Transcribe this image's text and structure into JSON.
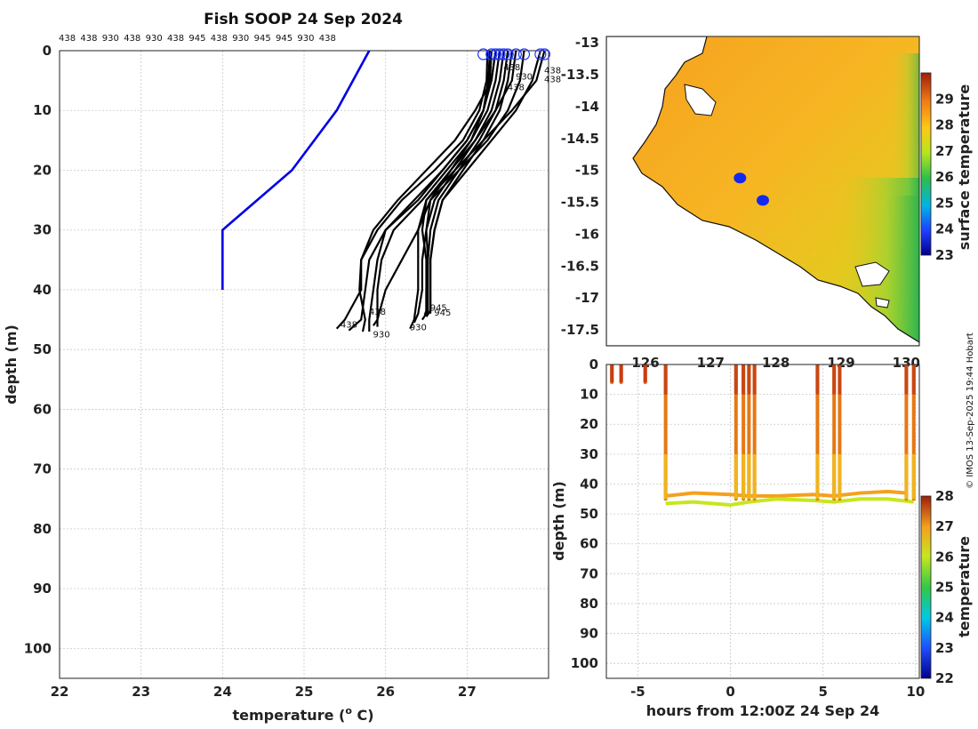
{
  "chart_data": [
    {
      "type": "line",
      "title": "Fish SOOP 24 Sep 2024",
      "xlabel": "temperature (o C)",
      "xlabel_prefix": "temperature (",
      "xlabel_sup": "o",
      "xlabel_suffix": " C)",
      "ylabel": "depth (m)",
      "xlim": [
        22,
        28
      ],
      "ylim": [
        105,
        0
      ],
      "xticks": [
        "22",
        "23",
        "24",
        "25",
        "26",
        "27"
      ],
      "xtick_values": [
        22,
        23,
        24,
        25,
        26,
        27
      ],
      "yticks": [
        "0",
        "10",
        "20",
        "30",
        "40",
        "50",
        "60",
        "70",
        "80",
        "90",
        "100"
      ],
      "ytick_values": [
        0,
        10,
        20,
        30,
        40,
        50,
        60,
        70,
        80,
        90,
        100
      ],
      "top_ids": [
        "438",
        "438",
        "930",
        "438",
        "930",
        "438",
        "945",
        "438",
        "930",
        "945",
        "945",
        "930",
        "438"
      ],
      "climatology": {
        "name": "climatology",
        "color": "#0000e6",
        "temp": [
          25.8,
          25.6,
          25.4,
          24.85,
          24.0,
          24.0
        ],
        "depth": [
          0,
          5,
          10,
          20,
          30,
          40
        ]
      },
      "profiles": [
        {
          "temp": [
            27.25,
            27.24,
            27.15,
            26.95,
            26.6,
            26.2,
            25.9,
            25.7,
            25.7,
            25.5,
            25.4
          ],
          "depth": [
            0,
            5,
            10,
            15,
            20,
            25,
            30,
            35,
            40,
            45,
            46.5
          ]
        },
        {
          "temp": [
            27.3,
            27.28,
            27.2,
            27.0,
            26.7,
            26.4,
            26.0,
            25.8,
            25.75,
            25.7,
            25.55
          ],
          "depth": [
            0,
            5,
            10,
            15,
            20,
            25,
            30,
            35,
            40,
            45,
            46.8
          ]
        },
        {
          "temp": [
            27.35,
            27.3,
            27.1,
            26.85,
            26.5,
            26.15,
            25.85,
            25.7,
            25.68,
            25.75,
            25.72
          ],
          "depth": [
            0,
            5,
            10,
            15,
            20,
            25,
            30,
            35,
            40,
            45,
            47.0
          ]
        },
        {
          "temp": [
            27.4,
            27.35,
            27.25,
            27.05,
            26.8,
            26.55,
            26.4,
            26.4,
            26.4,
            26.35,
            26.3
          ],
          "depth": [
            0,
            5,
            10,
            15,
            20,
            25,
            30,
            35,
            40,
            45,
            46.5
          ]
        },
        {
          "temp": [
            27.45,
            27.4,
            27.3,
            27.1,
            26.85,
            26.6,
            26.5,
            26.45,
            26.45,
            26.4,
            26.35
          ],
          "depth": [
            0,
            5,
            10,
            15,
            20,
            25,
            30,
            35,
            40,
            44,
            45.5
          ]
        },
        {
          "temp": [
            27.5,
            27.45,
            27.35,
            27.15,
            26.9,
            26.65,
            26.55,
            26.52,
            26.5,
            26.5,
            26.45
          ],
          "depth": [
            0,
            5,
            10,
            15,
            20,
            25,
            30,
            35,
            40,
            44,
            45
          ]
        },
        {
          "temp": [
            27.55,
            27.5,
            27.4,
            27.2,
            26.95,
            26.7,
            26.6,
            26.55,
            26.55,
            26.55,
            26.5
          ],
          "depth": [
            0,
            5,
            10,
            15,
            20,
            25,
            30,
            35,
            40,
            43.5,
            44.5
          ]
        },
        {
          "temp": [
            27.6,
            27.55,
            27.35,
            27.1,
            26.8,
            26.5,
            26.45,
            26.5,
            26.5,
            26.5,
            26.48
          ],
          "depth": [
            0,
            5,
            10,
            15,
            20,
            25,
            30,
            35,
            40,
            43.5,
            44.2
          ]
        },
        {
          "temp": [
            27.7,
            27.65,
            27.5,
            27.25,
            26.9,
            26.55,
            26.5,
            26.52,
            26.52,
            26.52,
            26.5
          ],
          "depth": [
            0,
            5,
            10,
            15,
            20,
            25,
            30,
            35,
            40,
            43.5,
            44.0
          ]
        },
        {
          "temp": [
            27.9,
            27.8,
            27.6,
            27.3,
            27.0,
            26.7,
            26.6,
            26.55,
            26.55,
            26.55,
            26.55
          ],
          "depth": [
            0,
            5,
            10,
            15,
            20,
            25,
            30,
            35,
            40,
            43.5,
            44.0
          ]
        },
        {
          "temp": [
            27.95,
            27.85,
            27.55,
            27.2,
            26.85,
            26.5,
            26.4,
            26.2,
            26.0,
            25.9,
            25.85
          ],
          "depth": [
            0,
            5,
            10,
            15,
            20,
            25,
            30,
            35,
            40,
            45,
            46.0
          ]
        },
        {
          "temp": [
            27.35,
            27.3,
            27.2,
            27.0,
            26.7,
            26.35,
            26.0,
            25.9,
            25.85,
            25.8,
            25.8
          ],
          "depth": [
            0,
            5,
            10,
            15,
            20,
            25,
            30,
            35,
            40,
            45,
            47.0
          ]
        },
        {
          "temp": [
            27.28,
            27.26,
            27.2,
            27.05,
            26.75,
            26.45,
            26.1,
            25.95,
            25.9,
            25.9,
            25.9
          ],
          "depth": [
            0,
            5,
            10,
            15,
            20,
            25,
            30,
            35,
            40,
            45,
            46.2
          ]
        }
      ],
      "surface_markers_temp": [
        27.2,
        27.3,
        27.35,
        27.4,
        27.45,
        27.5,
        27.6,
        27.7,
        27.9,
        27.95
      ],
      "bottom_labels": [
        {
          "text": "438",
          "temp": 25.55,
          "depth": 46.3
        },
        {
          "text": "930",
          "temp": 25.95,
          "depth": 48.0
        },
        {
          "text": "438",
          "temp": 25.9,
          "depth": 44.2
        },
        {
          "text": "930",
          "temp": 26.4,
          "depth": 46.8
        },
        {
          "text": "945",
          "temp": 26.65,
          "depth": 43.5
        },
        {
          "text": "945",
          "temp": 26.7,
          "depth": 44.3
        },
        {
          "text": "438",
          "temp": 27.55,
          "depth": 3.3
        },
        {
          "text": "930",
          "temp": 27.7,
          "depth": 4.8
        },
        {
          "text": "438",
          "temp": 27.6,
          "depth": 6.6
        },
        {
          "text": "438",
          "temp": 28.05,
          "depth": 3.8
        },
        {
          "text": "438",
          "temp": 28.05,
          "depth": 5.3
        }
      ]
    },
    {
      "type": "heatmap",
      "title": "",
      "colorbar_label": "surface temperature",
      "colorbar_range": [
        23,
        30
      ],
      "colorbar_ticks": [
        "23",
        "24",
        "25",
        "26",
        "27",
        "28",
        "29"
      ],
      "colorbar_tick_values": [
        23,
        24,
        25,
        26,
        27,
        28,
        29
      ],
      "yticks": [
        "-13",
        "-13.5",
        "-14",
        "-14.5",
        "-15",
        "-15.5",
        "-16",
        "-16.5",
        "-17",
        "-17.5"
      ],
      "ytick_values": [
        -13,
        -13.5,
        -14,
        -14.5,
        -15,
        -15.5,
        -16,
        -16.5,
        -17,
        -17.5
      ],
      "xticks": [
        "126",
        "127",
        "128",
        "129",
        "130"
      ],
      "xtick_values": [
        126,
        127,
        128,
        129,
        130
      ],
      "xlim": [
        125.4,
        130.2
      ],
      "ylim": [
        -17.75,
        -12.9
      ],
      "markers": [
        {
          "lon": 127.45,
          "lat": -15.12
        },
        {
          "lon": 127.8,
          "lat": -15.47
        }
      ]
    },
    {
      "type": "scatter",
      "xlabel": "hours from 12:00Z 24 Sep 24",
      "ylabel": "depth (m)",
      "xlim": [
        -6.7,
        10.2
      ],
      "ylim": [
        105,
        0
      ],
      "xticks": [
        "-5",
        "0",
        "5",
        "10"
      ],
      "xtick_values": [
        -5,
        0,
        5,
        10
      ],
      "yticks": [
        "0",
        "10",
        "20",
        "30",
        "40",
        "50",
        "60",
        "70",
        "80",
        "90",
        "100"
      ],
      "ytick_values": [
        0,
        10,
        20,
        30,
        40,
        50,
        60,
        70,
        80,
        90,
        100
      ],
      "colorbar_label": "temperature",
      "colorbar_range": [
        22,
        28
      ],
      "colorbar_ticks": [
        "22",
        "23",
        "24",
        "25",
        "26",
        "27",
        "28"
      ],
      "colorbar_tick_values": [
        22,
        23,
        24,
        25,
        26,
        27,
        28
      ],
      "casts_hours": [
        -6.4,
        -5.9,
        -4.6,
        -3.5,
        0.3,
        0.7,
        1.0,
        1.3,
        4.7,
        5.6,
        5.9,
        9.5,
        9.9
      ]
    }
  ],
  "credit": "© IMOS 13-Sep-2025 19:44 Hobart"
}
